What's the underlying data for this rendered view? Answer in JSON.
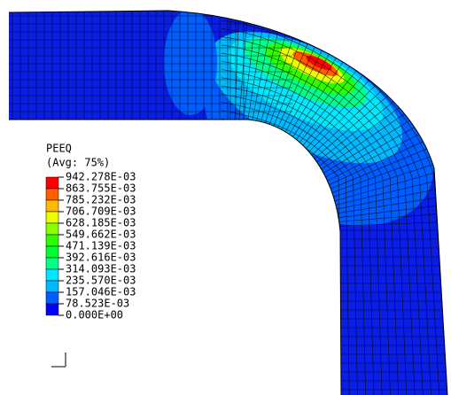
{
  "legend": {
    "title": "PEEQ",
    "subtitle": "(Avg: 75%)",
    "labels": [
      "942.278E-03",
      "863.755E-03",
      "785.232E-03",
      "706.709E-03",
      "628.185E-03",
      "549.662E-03",
      "471.139E-03",
      "392.616E-03",
      "314.093E-03",
      "235.570E-03",
      "157.046E-03",
      "78.523E-03",
      "0.000E+00"
    ],
    "colors": [
      "#ff0000",
      "#ff5d00",
      "#ffb900",
      "#e8ff00",
      "#8bff00",
      "#2eff00",
      "#00ff2e",
      "#00ff8b",
      "#00e8ff",
      "#00b9ff",
      "#005dff",
      "#0000ff"
    ]
  }
}
